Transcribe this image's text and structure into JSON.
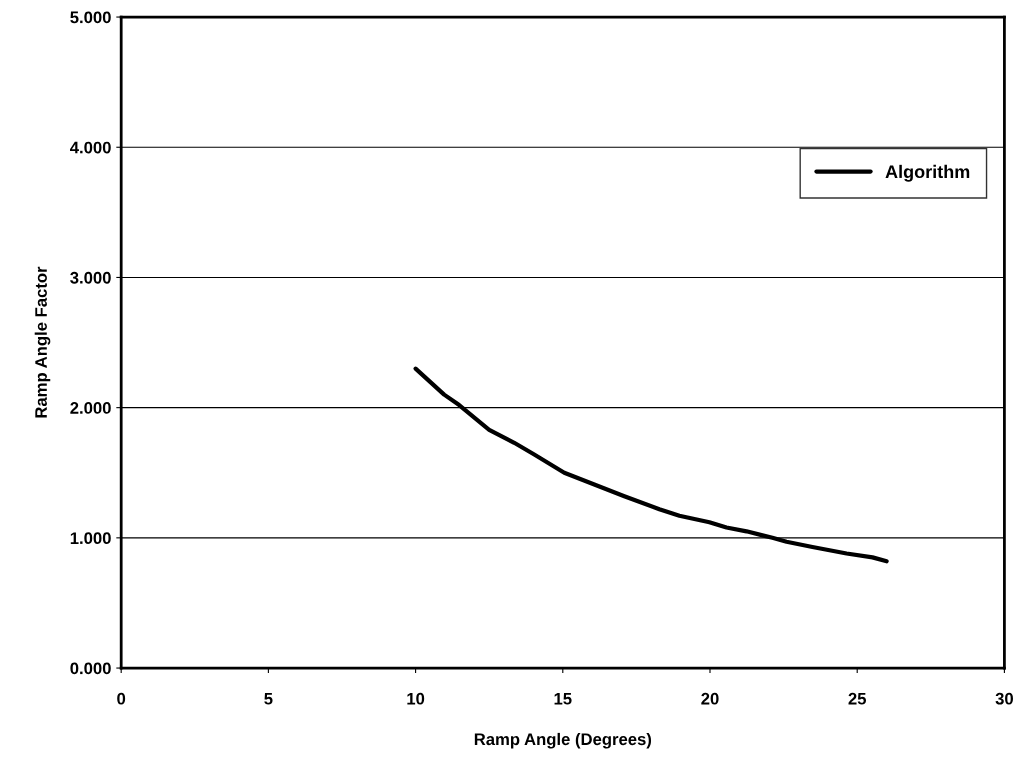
{
  "chart_data": {
    "type": "line",
    "xlabel": "Ramp Angle (Degrees)",
    "ylabel": "Ramp Angle Factor",
    "series": [
      {
        "name": "Algorithm",
        "color": "#000000",
        "x": [
          10.0,
          10.97,
          11.48,
          12.5,
          13.35,
          14.03,
          15.05,
          16.07,
          17.09,
          18.28,
          18.96,
          19.98,
          20.56,
          21.24,
          22.12,
          22.6,
          23.48,
          24.64,
          25.52,
          26.0
        ],
        "values": [
          2.3,
          2.1,
          2.02,
          1.83,
          1.73,
          1.64,
          1.5,
          1.41,
          1.32,
          1.22,
          1.17,
          1.12,
          1.08,
          1.05,
          1.0,
          0.97,
          0.93,
          0.88,
          0.85,
          0.82
        ]
      }
    ],
    "xlim": [
      0,
      30
    ],
    "xticks": [
      0,
      5,
      10,
      15,
      20,
      25,
      30
    ],
    "ylim": [
      0,
      5
    ],
    "yticks": [
      {
        "value": 0,
        "label": "0.000"
      },
      {
        "value": 1,
        "label": "1.000"
      },
      {
        "value": 2,
        "label": "2.000"
      },
      {
        "value": 3,
        "label": "3.000"
      },
      {
        "value": 4,
        "label": "4.000"
      },
      {
        "value": 5,
        "label": "5.000"
      }
    ],
    "grid": "y",
    "legend": "right",
    "marker": "none",
    "line_style": "solid"
  }
}
